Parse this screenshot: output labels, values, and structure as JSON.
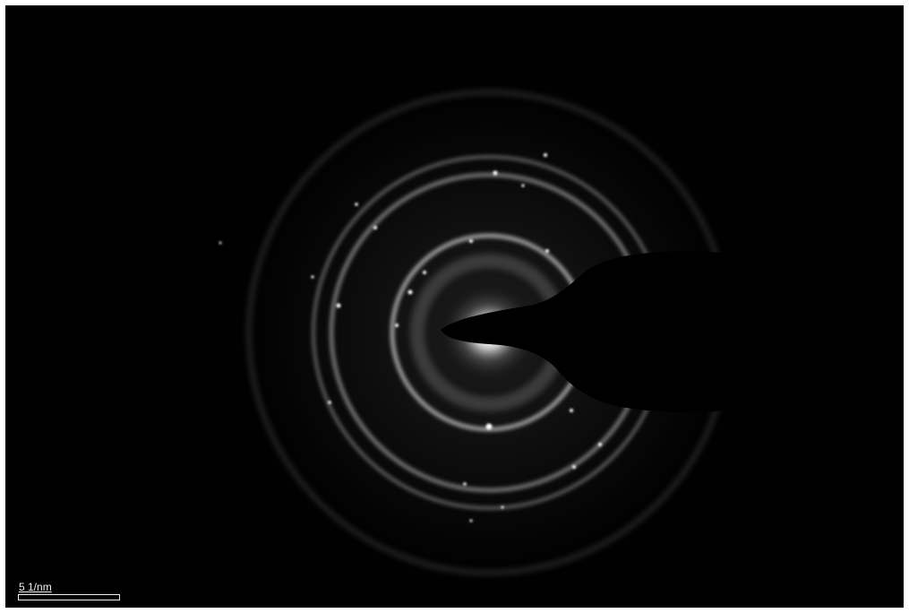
{
  "image": {
    "type": "electron-diffraction-pattern",
    "background_color": "#000000",
    "ring_color": "#bfbfbf"
  },
  "scale_bar": {
    "label": "5 1/nm"
  }
}
